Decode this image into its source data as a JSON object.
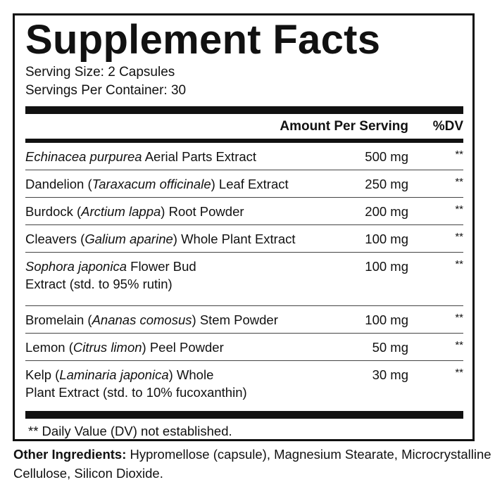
{
  "title": "Supplement Facts",
  "serving_size": "Serving Size: 2 Capsules",
  "servings_per_container": "Servings Per Container: 30",
  "header": {
    "amount": "Amount Per Serving",
    "dv": "%DV"
  },
  "rows": [
    {
      "name": [
        {
          "text": "Echinacea purpurea",
          "italic": true
        },
        {
          "text": " Aerial Parts Extract",
          "italic": false
        }
      ],
      "amount": "500 mg",
      "dv": "**"
    },
    {
      "name": [
        {
          "text": "Dandelion (",
          "italic": false
        },
        {
          "text": "Taraxacum officinale",
          "italic": true
        },
        {
          "text": ") Leaf Extract",
          "italic": false
        }
      ],
      "amount": "250 mg",
      "dv": "**"
    },
    {
      "name": [
        {
          "text": "Burdock (",
          "italic": false
        },
        {
          "text": "Arctium lappa",
          "italic": true
        },
        {
          "text": ") Root Powder",
          "italic": false
        }
      ],
      "amount": "200 mg",
      "dv": "**"
    },
    {
      "name": [
        {
          "text": "Cleavers (",
          "italic": false
        },
        {
          "text": "Galium aparine",
          "italic": true
        },
        {
          "text": ") Whole Plant Extract",
          "italic": false
        }
      ],
      "amount": "100 mg",
      "dv": "**"
    },
    {
      "name": [
        {
          "text": "Sophora japonica",
          "italic": true
        },
        {
          "text": " Flower Bud",
          "italic": false
        },
        {
          "text": "\n",
          "italic": false
        },
        {
          "text": "Extract (std. to 95% rutin)",
          "italic": false
        }
      ],
      "amount": "100 mg",
      "dv": "**"
    },
    {
      "name": [
        {
          "text": "Bromelain (",
          "italic": false
        },
        {
          "text": "Ananas comosus",
          "italic": true
        },
        {
          "text": ") Stem Powder",
          "italic": false
        }
      ],
      "amount": "100 mg",
      "dv": "**"
    },
    {
      "name": [
        {
          "text": "Lemon (",
          "italic": false
        },
        {
          "text": "Citrus limon",
          "italic": true
        },
        {
          "text": ") Peel Powder",
          "italic": false
        }
      ],
      "amount": "50 mg",
      "dv": "**"
    },
    {
      "name": [
        {
          "text": "Kelp (",
          "italic": false
        },
        {
          "text": "Laminaria japonica",
          "italic": true
        },
        {
          "text": ") Whole",
          "italic": false
        },
        {
          "text": "\n",
          "italic": false
        },
        {
          "text": "Plant Extract (std. to 10% fucoxanthin)",
          "italic": false
        }
      ],
      "amount": "30 mg",
      "dv": "**"
    }
  ],
  "footnote": "** Daily Value (DV) not established.",
  "other_ingredients": {
    "label": "Other Ingredients:",
    "text": " Hypromellose (capsule), Magnesium Stearate, Microcrystalline Cellulose, Silicon Dioxide."
  }
}
